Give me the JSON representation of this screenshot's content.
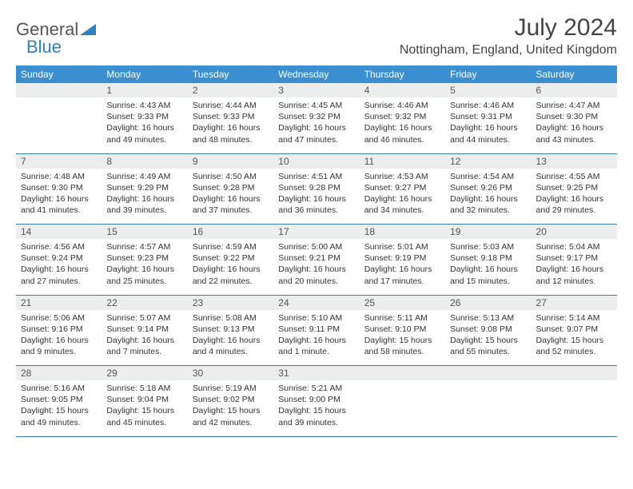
{
  "logo": {
    "t1": "General",
    "t2": "Blue"
  },
  "title": "July 2024",
  "location": "Nottingham, England, United Kingdom",
  "colors": {
    "header_bg": "#3a8fd0",
    "header_fg": "#ffffff",
    "daynum_bg": "#eceded",
    "rule": "#3a7db0",
    "logo_blue": "#2f7fbf"
  },
  "day_headers": [
    "Sunday",
    "Monday",
    "Tuesday",
    "Wednesday",
    "Thursday",
    "Friday",
    "Saturday"
  ],
  "weeks": [
    {
      "nums": [
        "",
        "1",
        "2",
        "3",
        "4",
        "5",
        "6"
      ],
      "cells": [
        [],
        [
          "Sunrise: 4:43 AM",
          "Sunset: 9:33 PM",
          "Daylight: 16 hours",
          "and 49 minutes."
        ],
        [
          "Sunrise: 4:44 AM",
          "Sunset: 9:33 PM",
          "Daylight: 16 hours",
          "and 48 minutes."
        ],
        [
          "Sunrise: 4:45 AM",
          "Sunset: 9:32 PM",
          "Daylight: 16 hours",
          "and 47 minutes."
        ],
        [
          "Sunrise: 4:46 AM",
          "Sunset: 9:32 PM",
          "Daylight: 16 hours",
          "and 46 minutes."
        ],
        [
          "Sunrise: 4:46 AM",
          "Sunset: 9:31 PM",
          "Daylight: 16 hours",
          "and 44 minutes."
        ],
        [
          "Sunrise: 4:47 AM",
          "Sunset: 9:30 PM",
          "Daylight: 16 hours",
          "and 43 minutes."
        ]
      ]
    },
    {
      "nums": [
        "7",
        "8",
        "9",
        "10",
        "11",
        "12",
        "13"
      ],
      "cells": [
        [
          "Sunrise: 4:48 AM",
          "Sunset: 9:30 PM",
          "Daylight: 16 hours",
          "and 41 minutes."
        ],
        [
          "Sunrise: 4:49 AM",
          "Sunset: 9:29 PM",
          "Daylight: 16 hours",
          "and 39 minutes."
        ],
        [
          "Sunrise: 4:50 AM",
          "Sunset: 9:28 PM",
          "Daylight: 16 hours",
          "and 37 minutes."
        ],
        [
          "Sunrise: 4:51 AM",
          "Sunset: 9:28 PM",
          "Daylight: 16 hours",
          "and 36 minutes."
        ],
        [
          "Sunrise: 4:53 AM",
          "Sunset: 9:27 PM",
          "Daylight: 16 hours",
          "and 34 minutes."
        ],
        [
          "Sunrise: 4:54 AM",
          "Sunset: 9:26 PM",
          "Daylight: 16 hours",
          "and 32 minutes."
        ],
        [
          "Sunrise: 4:55 AM",
          "Sunset: 9:25 PM",
          "Daylight: 16 hours",
          "and 29 minutes."
        ]
      ]
    },
    {
      "nums": [
        "14",
        "15",
        "16",
        "17",
        "18",
        "19",
        "20"
      ],
      "cells": [
        [
          "Sunrise: 4:56 AM",
          "Sunset: 9:24 PM",
          "Daylight: 16 hours",
          "and 27 minutes."
        ],
        [
          "Sunrise: 4:57 AM",
          "Sunset: 9:23 PM",
          "Daylight: 16 hours",
          "and 25 minutes."
        ],
        [
          "Sunrise: 4:59 AM",
          "Sunset: 9:22 PM",
          "Daylight: 16 hours",
          "and 22 minutes."
        ],
        [
          "Sunrise: 5:00 AM",
          "Sunset: 9:21 PM",
          "Daylight: 16 hours",
          "and 20 minutes."
        ],
        [
          "Sunrise: 5:01 AM",
          "Sunset: 9:19 PM",
          "Daylight: 16 hours",
          "and 17 minutes."
        ],
        [
          "Sunrise: 5:03 AM",
          "Sunset: 9:18 PM",
          "Daylight: 16 hours",
          "and 15 minutes."
        ],
        [
          "Sunrise: 5:04 AM",
          "Sunset: 9:17 PM",
          "Daylight: 16 hours",
          "and 12 minutes."
        ]
      ]
    },
    {
      "nums": [
        "21",
        "22",
        "23",
        "24",
        "25",
        "26",
        "27"
      ],
      "cells": [
        [
          "Sunrise: 5:06 AM",
          "Sunset: 9:16 PM",
          "Daylight: 16 hours",
          "and 9 minutes."
        ],
        [
          "Sunrise: 5:07 AM",
          "Sunset: 9:14 PM",
          "Daylight: 16 hours",
          "and 7 minutes."
        ],
        [
          "Sunrise: 5:08 AM",
          "Sunset: 9:13 PM",
          "Daylight: 16 hours",
          "and 4 minutes."
        ],
        [
          "Sunrise: 5:10 AM",
          "Sunset: 9:11 PM",
          "Daylight: 16 hours",
          "and 1 minute."
        ],
        [
          "Sunrise: 5:11 AM",
          "Sunset: 9:10 PM",
          "Daylight: 15 hours",
          "and 58 minutes."
        ],
        [
          "Sunrise: 5:13 AM",
          "Sunset: 9:08 PM",
          "Daylight: 15 hours",
          "and 55 minutes."
        ],
        [
          "Sunrise: 5:14 AM",
          "Sunset: 9:07 PM",
          "Daylight: 15 hours",
          "and 52 minutes."
        ]
      ]
    },
    {
      "nums": [
        "28",
        "29",
        "30",
        "31",
        "",
        "",
        ""
      ],
      "cells": [
        [
          "Sunrise: 5:16 AM",
          "Sunset: 9:05 PM",
          "Daylight: 15 hours",
          "and 49 minutes."
        ],
        [
          "Sunrise: 5:18 AM",
          "Sunset: 9:04 PM",
          "Daylight: 15 hours",
          "and 45 minutes."
        ],
        [
          "Sunrise: 5:19 AM",
          "Sunset: 9:02 PM",
          "Daylight: 15 hours",
          "and 42 minutes."
        ],
        [
          "Sunrise: 5:21 AM",
          "Sunset: 9:00 PM",
          "Daylight: 15 hours",
          "and 39 minutes."
        ],
        [],
        [],
        []
      ]
    }
  ]
}
